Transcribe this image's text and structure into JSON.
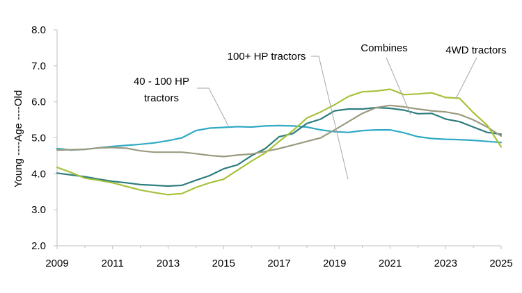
{
  "chart_data": {
    "type": "line",
    "title": "",
    "ylabel": "Young ----Age ----Old",
    "xlabel": "",
    "ylim": [
      2.0,
      8.0
    ],
    "xlim": [
      2009,
      2025
    ],
    "yticks": [
      "2.0",
      "3.0",
      "4.0",
      "5.0",
      "6.0",
      "7.0",
      "8.0"
    ],
    "xticks": [
      "2009",
      "2011",
      "2013",
      "2015",
      "2017",
      "2019",
      "2021",
      "2023",
      "2025"
    ],
    "grid": false,
    "legend": "none",
    "series": [
      {
        "name": "40 - 100 HP tractors",
        "color": "#2fa9c4",
        "points": [
          [
            2009,
            4.7
          ],
          [
            2009.5,
            4.66
          ],
          [
            2010,
            4.68
          ],
          [
            2010.5,
            4.72
          ],
          [
            2011,
            4.76
          ],
          [
            2011.5,
            4.79
          ],
          [
            2012,
            4.82
          ],
          [
            2012.5,
            4.86
          ],
          [
            2013,
            4.92
          ],
          [
            2013.5,
            5.0
          ],
          [
            2014,
            5.2
          ],
          [
            2014.5,
            5.27
          ],
          [
            2015,
            5.29
          ],
          [
            2015.5,
            5.31
          ],
          [
            2016,
            5.3
          ],
          [
            2016.5,
            5.33
          ],
          [
            2017,
            5.34
          ],
          [
            2017.5,
            5.33
          ],
          [
            2018,
            5.3
          ],
          [
            2018.5,
            5.22
          ],
          [
            2019,
            5.17
          ],
          [
            2019.5,
            5.15
          ],
          [
            2020,
            5.2
          ],
          [
            2020.5,
            5.22
          ],
          [
            2021,
            5.22
          ],
          [
            2021.5,
            5.14
          ],
          [
            2022,
            5.03
          ],
          [
            2022.5,
            4.98
          ],
          [
            2023,
            4.96
          ],
          [
            2023.5,
            4.95
          ],
          [
            2024,
            4.93
          ],
          [
            2024.5,
            4.9
          ],
          [
            2025,
            4.87
          ]
        ]
      },
      {
        "name": "100+ HP tractors",
        "color": "#2e7d7d",
        "points": [
          [
            2009,
            4.02
          ],
          [
            2009.5,
            3.97
          ],
          [
            2010,
            3.92
          ],
          [
            2010.5,
            3.85
          ],
          [
            2011,
            3.79
          ],
          [
            2011.5,
            3.75
          ],
          [
            2012,
            3.7
          ],
          [
            2012.5,
            3.68
          ],
          [
            2013,
            3.66
          ],
          [
            2013.5,
            3.68
          ],
          [
            2014,
            3.82
          ],
          [
            2014.5,
            3.95
          ],
          [
            2015,
            4.14
          ],
          [
            2015.5,
            4.25
          ],
          [
            2016,
            4.5
          ],
          [
            2016.5,
            4.7
          ],
          [
            2017,
            5.03
          ],
          [
            2017.5,
            5.12
          ],
          [
            2018,
            5.4
          ],
          [
            2018.5,
            5.52
          ],
          [
            2019,
            5.75
          ],
          [
            2019.5,
            5.8
          ],
          [
            2020,
            5.8
          ],
          [
            2020.5,
            5.84
          ],
          [
            2021,
            5.82
          ],
          [
            2021.5,
            5.77
          ],
          [
            2022,
            5.67
          ],
          [
            2022.5,
            5.68
          ],
          [
            2023,
            5.52
          ],
          [
            2023.5,
            5.45
          ],
          [
            2024,
            5.3
          ],
          [
            2024.5,
            5.15
          ],
          [
            2025,
            5.1
          ]
        ]
      },
      {
        "name": "Combines",
        "color": "#9b9a80",
        "points": [
          [
            2009,
            4.66
          ],
          [
            2009.5,
            4.67
          ],
          [
            2010,
            4.68
          ],
          [
            2010.5,
            4.72
          ],
          [
            2011,
            4.73
          ],
          [
            2011.5,
            4.71
          ],
          [
            2012,
            4.64
          ],
          [
            2012.5,
            4.6
          ],
          [
            2013,
            4.6
          ],
          [
            2013.5,
            4.6
          ],
          [
            2014,
            4.56
          ],
          [
            2014.5,
            4.51
          ],
          [
            2015,
            4.48
          ],
          [
            2015.5,
            4.52
          ],
          [
            2016,
            4.55
          ],
          [
            2016.5,
            4.62
          ],
          [
            2017,
            4.7
          ],
          [
            2017.5,
            4.8
          ],
          [
            2018,
            4.9
          ],
          [
            2018.5,
            5.0
          ],
          [
            2019,
            5.22
          ],
          [
            2019.5,
            5.45
          ],
          [
            2020,
            5.68
          ],
          [
            2020.5,
            5.84
          ],
          [
            2021,
            5.9
          ],
          [
            2021.5,
            5.86
          ],
          [
            2022,
            5.8
          ],
          [
            2022.5,
            5.75
          ],
          [
            2023,
            5.72
          ],
          [
            2023.5,
            5.65
          ],
          [
            2024,
            5.5
          ],
          [
            2024.5,
            5.3
          ],
          [
            2025,
            5.05
          ]
        ]
      },
      {
        "name": "4WD tractors",
        "color": "#a6c23a",
        "points": [
          [
            2009,
            4.18
          ],
          [
            2009.5,
            4.04
          ],
          [
            2010,
            3.88
          ],
          [
            2010.5,
            3.82
          ],
          [
            2011,
            3.75
          ],
          [
            2011.5,
            3.65
          ],
          [
            2012,
            3.55
          ],
          [
            2012.5,
            3.48
          ],
          [
            2013,
            3.42
          ],
          [
            2013.5,
            3.45
          ],
          [
            2014,
            3.62
          ],
          [
            2014.5,
            3.75
          ],
          [
            2015,
            3.85
          ],
          [
            2015.5,
            4.1
          ],
          [
            2016,
            4.35
          ],
          [
            2016.5,
            4.58
          ],
          [
            2017,
            4.9
          ],
          [
            2017.5,
            5.2
          ],
          [
            2018,
            5.55
          ],
          [
            2018.5,
            5.72
          ],
          [
            2019,
            5.92
          ],
          [
            2019.5,
            6.15
          ],
          [
            2020,
            6.28
          ],
          [
            2020.5,
            6.3
          ],
          [
            2021,
            6.35
          ],
          [
            2021.5,
            6.2
          ],
          [
            2022,
            6.22
          ],
          [
            2022.5,
            6.25
          ],
          [
            2023,
            6.12
          ],
          [
            2023.5,
            6.1
          ],
          [
            2024,
            5.7
          ],
          [
            2024.5,
            5.35
          ],
          [
            2025,
            4.75
          ]
        ]
      }
    ],
    "annotations": [
      {
        "lines": [
          "40 - 100 HP",
          "tractors"
        ],
        "series": "40 - 100 HP tractors"
      },
      {
        "lines": [
          "100+ HP tractors"
        ],
        "series": "100+ HP tractors"
      },
      {
        "lines": [
          "Combines"
        ],
        "series": "Combines"
      },
      {
        "lines": [
          "4WD tractors"
        ],
        "series": "4WD tractors"
      }
    ]
  }
}
